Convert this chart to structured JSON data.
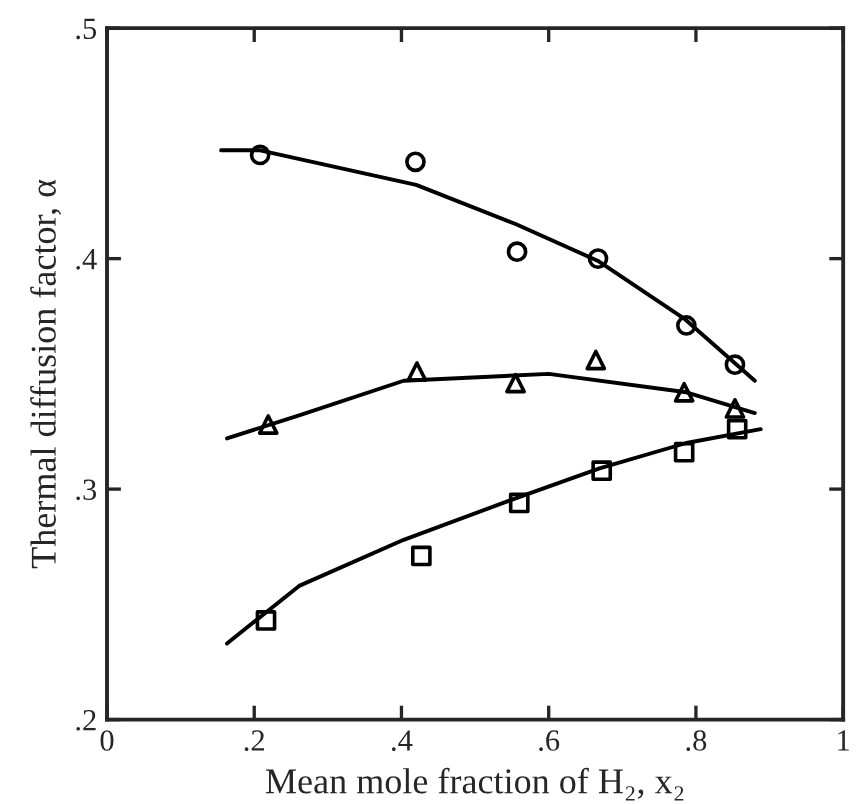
{
  "chart_data": {
    "type": "scatter",
    "xlabel": "Mean mole fraction of H₂, x₂",
    "ylabel": "Thermal diffusion factor, α",
    "xlim": [
      0,
      1
    ],
    "ylim": [
      0.2,
      0.5
    ],
    "xticks": [
      {
        "value": 0,
        "label": "0"
      },
      {
        "value": 0.2,
        "label": ".2"
      },
      {
        "value": 0.4,
        "label": ".4"
      },
      {
        "value": 0.6,
        "label": ".6"
      },
      {
        "value": 0.8,
        "label": ".8"
      },
      {
        "value": 1,
        "label": "1"
      }
    ],
    "yticks": [
      {
        "value": 0.2,
        "label": ".2"
      },
      {
        "value": 0.3,
        "label": ".3"
      },
      {
        "value": 0.4,
        "label": ".4"
      },
      {
        "value": 0.5,
        "label": ".5"
      }
    ],
    "grid": false,
    "series": [
      {
        "marker": "circle",
        "color": "#000000",
        "x": [
          0.208,
          0.419,
          0.557,
          0.667,
          0.787,
          0.853
        ],
        "values": [
          0.445,
          0.442,
          0.403,
          0.4,
          0.371,
          0.354
        ]
      },
      {
        "marker": "triangle",
        "color": "#000000",
        "x": [
          0.219,
          0.421,
          0.555,
          0.664,
          0.784,
          0.853
        ],
        "values": [
          0.328,
          0.351,
          0.346,
          0.356,
          0.342,
          0.335
        ]
      },
      {
        "marker": "square",
        "color": "#000000",
        "x": [
          0.216,
          0.427,
          0.56,
          0.672,
          0.784,
          0.856
        ],
        "values": [
          0.243,
          0.271,
          0.294,
          0.308,
          0.316,
          0.326
        ]
      },
      {
        "type": "line",
        "marker": "none",
        "line_style": "solid",
        "color": "#000000",
        "x": [
          0.155,
          0.208,
          0.42,
          0.555,
          0.667,
          0.784,
          0.88
        ],
        "values": [
          0.447,
          0.447,
          0.432,
          0.415,
          0.399,
          0.374,
          0.347
        ]
      },
      {
        "type": "line",
        "marker": "none",
        "line_style": "solid",
        "color": "#000000",
        "x": [
          0.163,
          0.261,
          0.403,
          0.6,
          0.787,
          0.88
        ],
        "values": [
          0.322,
          0.332,
          0.347,
          0.35,
          0.342,
          0.333
        ]
      },
      {
        "type": "line",
        "marker": "none",
        "line_style": "solid",
        "color": "#000000",
        "x": [
          0.163,
          0.261,
          0.403,
          0.555,
          0.669,
          0.787,
          0.888
        ],
        "values": [
          0.233,
          0.258,
          0.278,
          0.296,
          0.309,
          0.32,
          0.326
        ]
      }
    ]
  }
}
